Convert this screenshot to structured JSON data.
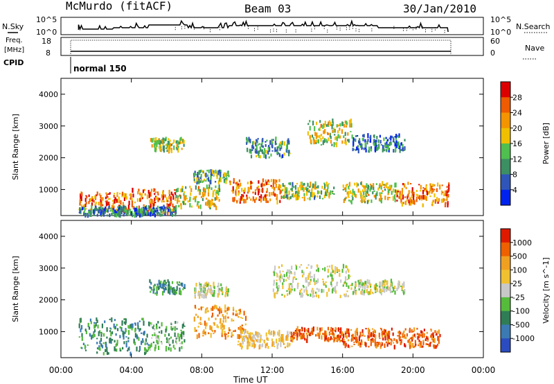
{
  "header": {
    "station": "McMurdo (fitACF)",
    "beam": "Beam 03",
    "date": "30/Jan/2010"
  },
  "strips": {
    "nsky_label": "N.Sky",
    "nsearch_label": "N.Search",
    "nsky_ticks": [
      "10^5",
      "10^0"
    ],
    "nsearch_ticks": [
      "10^5",
      "10^0"
    ],
    "freq_label_1": "Freq.",
    "freq_label_2": "[MHz]",
    "freq_ticks": [
      "18",
      "8"
    ],
    "nave_label": "Nave",
    "nave_ticks": [
      "60",
      "0"
    ],
    "cpid_label": "CPID",
    "cpid_value": "normal 150"
  },
  "colors": {
    "power": [
      "#0022ee",
      "#2f55b8",
      "#3c8f62",
      "#4fbf4f",
      "#f0c000",
      "#f39400",
      "#ee5b00",
      "#dd0000"
    ],
    "velocity": [
      "#2b4cc0",
      "#3b7ab3",
      "#2f7d55",
      "#55bb3b",
      "#c8c8c8",
      "#f0c030",
      "#f0a020",
      "#ee6000",
      "#dd1a00"
    ]
  },
  "chart_data": [
    {
      "type": "heatmap",
      "name": "power-panel",
      "xlabel": "",
      "ylabel": "Slant Range [km]",
      "xlim": [
        "00:00",
        "00:00"
      ],
      "xticks": [
        "00:00",
        "04:00",
        "08:00",
        "12:00",
        "16:00",
        "20:00",
        "00:00"
      ],
      "ylim": [
        180,
        4500
      ],
      "yticks": [
        1000,
        2000,
        3000,
        4000
      ],
      "colorbar": {
        "label": "Power [dB]",
        "ticks": [
          "4",
          "8",
          "12",
          "16",
          "20",
          "24",
          "28"
        ],
        "range": [
          0,
          30
        ]
      },
      "blobs": [
        {
          "t0": 1.0,
          "t1": 4.0,
          "r0": 300,
          "r1": 900,
          "v": 22
        },
        {
          "t0": 4.0,
          "t1": 6.5,
          "r0": 250,
          "r1": 1000,
          "v": 24
        },
        {
          "t0": 6.5,
          "t1": 9.0,
          "r0": 400,
          "r1": 1100,
          "v": 16
        },
        {
          "t0": 9.5,
          "t1": 12.5,
          "r0": 600,
          "r1": 1300,
          "v": 22
        },
        {
          "t0": 12.5,
          "t1": 15.5,
          "r0": 700,
          "r1": 1200,
          "v": 14
        },
        {
          "t0": 16.0,
          "t1": 19.0,
          "r0": 600,
          "r1": 1200,
          "v": 16
        },
        {
          "t0": 19.0,
          "t1": 22.0,
          "r0": 500,
          "r1": 1200,
          "v": 22
        },
        {
          "t0": 1.0,
          "t1": 6.5,
          "r0": 180,
          "r1": 450,
          "v": 8
        },
        {
          "t0": 5.0,
          "t1": 7.0,
          "r0": 2200,
          "r1": 2600,
          "v": 14
        },
        {
          "t0": 7.5,
          "t1": 9.5,
          "r0": 1200,
          "r1": 1600,
          "v": 12
        },
        {
          "t0": 10.5,
          "t1": 13.0,
          "r0": 2000,
          "r1": 2600,
          "v": 10
        },
        {
          "t0": 14.0,
          "t1": 16.5,
          "r0": 2400,
          "r1": 3200,
          "v": 16
        },
        {
          "t0": 16.5,
          "t1": 19.5,
          "r0": 2200,
          "r1": 2700,
          "v": 8
        }
      ]
    },
    {
      "type": "heatmap",
      "name": "velocity-panel",
      "xlabel": "Time UT",
      "ylabel": "Slant Range [km]",
      "xlim": [
        "00:00",
        "00:00"
      ],
      "xticks": [
        "00:00",
        "04:00",
        "08:00",
        "12:00",
        "16:00",
        "20:00",
        "00:00"
      ],
      "ylim": [
        180,
        4500
      ],
      "yticks": [
        1000,
        2000,
        3000,
        4000
      ],
      "colorbar": {
        "label": "Velocity [m s^-1]",
        "ticks": [
          "1000",
          "500",
          "100",
          "25",
          "-25",
          "-100",
          "-500",
          "-1000"
        ]
      },
      "blobs": [
        {
          "t0": 1.0,
          "t1": 5.0,
          "r0": 300,
          "r1": 1400,
          "v": 2
        },
        {
          "t0": 5.0,
          "t1": 7.0,
          "r0": 400,
          "r1": 1300,
          "v": 3
        },
        {
          "t0": 7.5,
          "t1": 10.5,
          "r0": 800,
          "r1": 1800,
          "v": 6
        },
        {
          "t0": 10.0,
          "t1": 13.0,
          "r0": 500,
          "r1": 1000,
          "v": 5
        },
        {
          "t0": 13.0,
          "t1": 16.0,
          "r0": 700,
          "r1": 1100,
          "v": 7
        },
        {
          "t0": 16.0,
          "t1": 21.5,
          "r0": 500,
          "r1": 1100,
          "v": 7
        },
        {
          "t0": 12.0,
          "t1": 16.5,
          "r0": 2100,
          "r1": 3100,
          "v": 4
        },
        {
          "t0": 16.5,
          "t1": 19.5,
          "r0": 2200,
          "r1": 2600,
          "v": 4
        },
        {
          "t0": 5.0,
          "t1": 7.0,
          "r0": 2200,
          "r1": 2600,
          "v": 2
        },
        {
          "t0": 7.5,
          "t1": 9.5,
          "r0": 2100,
          "r1": 2500,
          "v": 4
        }
      ]
    }
  ]
}
